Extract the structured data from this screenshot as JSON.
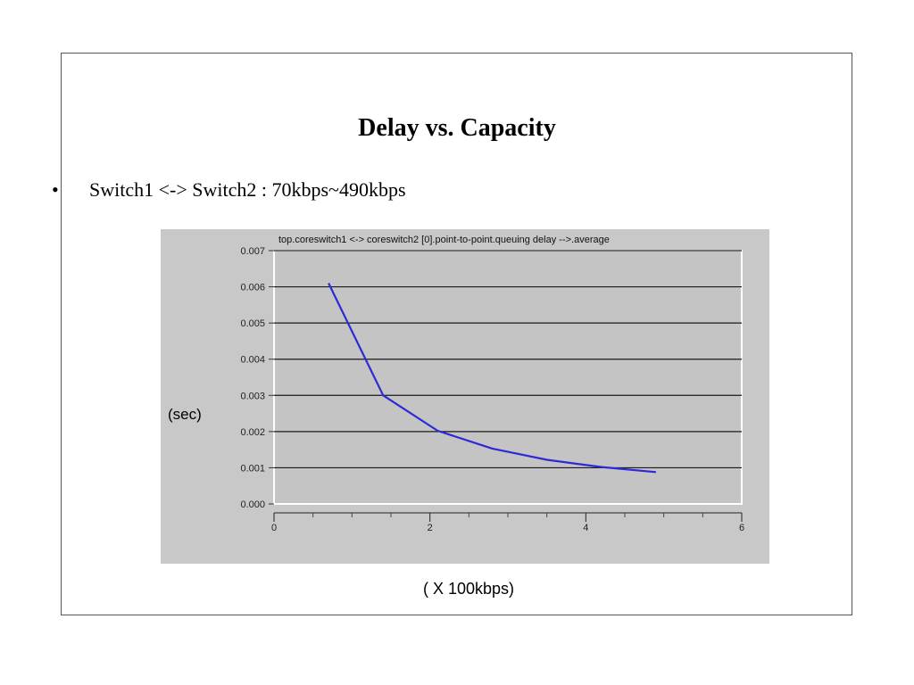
{
  "slide": {
    "title": "Delay vs. Capacity",
    "bullet_symbol": "•",
    "bullet_text": "Switch1 <-> Switch2 : 70kbps~490kbps",
    "y_unit_label": "(sec)",
    "x_unit_label": "( X 100kbps)"
  },
  "chart_data": {
    "type": "line",
    "title": "top.coreswitch1 <-> coreswitch2 [0].point-to-point.queuing delay -->.average",
    "xlabel": "( X 100kbps)",
    "ylabel": "(sec)",
    "xlim": [
      0,
      6
    ],
    "ylim": [
      0,
      0.007
    ],
    "x_ticks": [
      "0",
      "2",
      "4",
      "6"
    ],
    "y_ticks": [
      "0.000",
      "0.001",
      "0.002",
      "0.003",
      "0.004",
      "0.005",
      "0.006",
      "0.007"
    ],
    "grid": true,
    "series": [
      {
        "color": "#2b2bd6",
        "x": [
          0.7,
          1.4,
          2.1,
          2.8,
          3.5,
          4.2,
          4.9
        ],
        "y": [
          0.0061,
          0.003,
          0.00202,
          0.00153,
          0.00122,
          0.00102,
          0.00088
        ]
      }
    ],
    "colors": {
      "panel_bg": "#c8c8c8",
      "plot_bg": "#c4c4c4",
      "grid": "#1a1a1a",
      "line": "#2b2bd6",
      "axis_frame": "#ffffff"
    }
  }
}
